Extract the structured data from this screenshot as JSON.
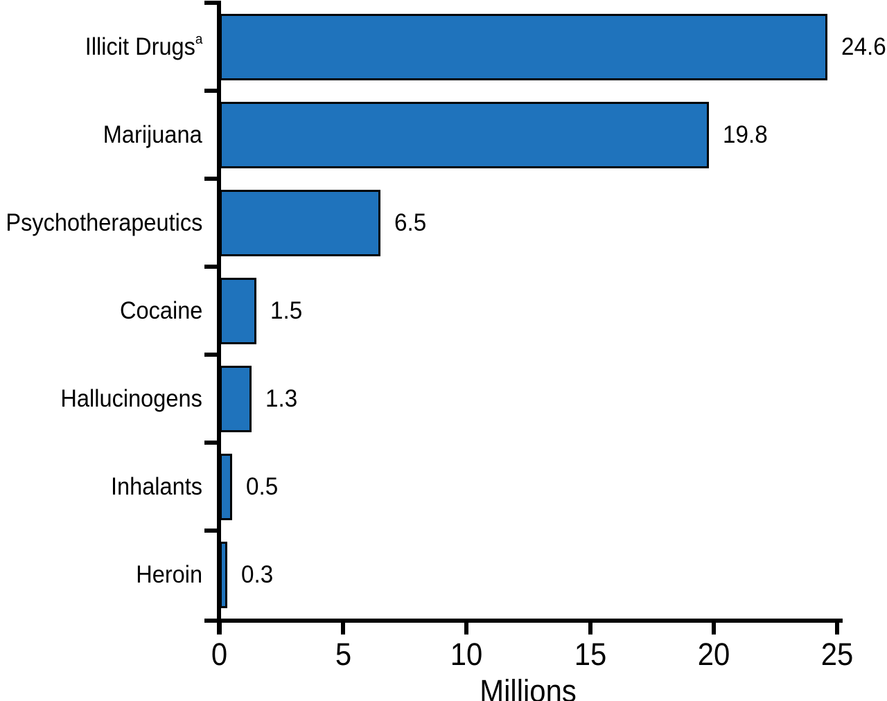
{
  "figure": {
    "background_color": "#ffffff",
    "text_color": "#000000"
  },
  "chart_data": {
    "type": "bar",
    "orientation": "horizontal",
    "title": "",
    "xlabel": "Millions",
    "ylabel": "",
    "xlim": [
      0,
      25
    ],
    "x_ticks": [
      "0",
      "5",
      "10",
      "15",
      "20",
      "25"
    ],
    "x_tick_values": [
      0,
      5,
      10,
      15,
      20,
      25
    ],
    "grid": false,
    "legend": "none",
    "bar_color": "#1F73BC",
    "bar_border_color": "#000000",
    "axis_color": "#000000",
    "categories": [
      "Illicit Drugs",
      "Marijuana",
      "Psychotherapeutics",
      "Cocaine",
      "Hallucinogens",
      "Inhalants",
      "Heroin"
    ],
    "category_superscripts": [
      "a",
      "",
      "",
      "",
      "",
      "",
      ""
    ],
    "values": [
      24.6,
      19.8,
      6.5,
      1.5,
      1.3,
      0.5,
      0.3
    ],
    "value_labels": [
      "24.6",
      "19.8",
      "6.5",
      "1.5",
      "1.3",
      "0.5",
      "0.3"
    ]
  }
}
